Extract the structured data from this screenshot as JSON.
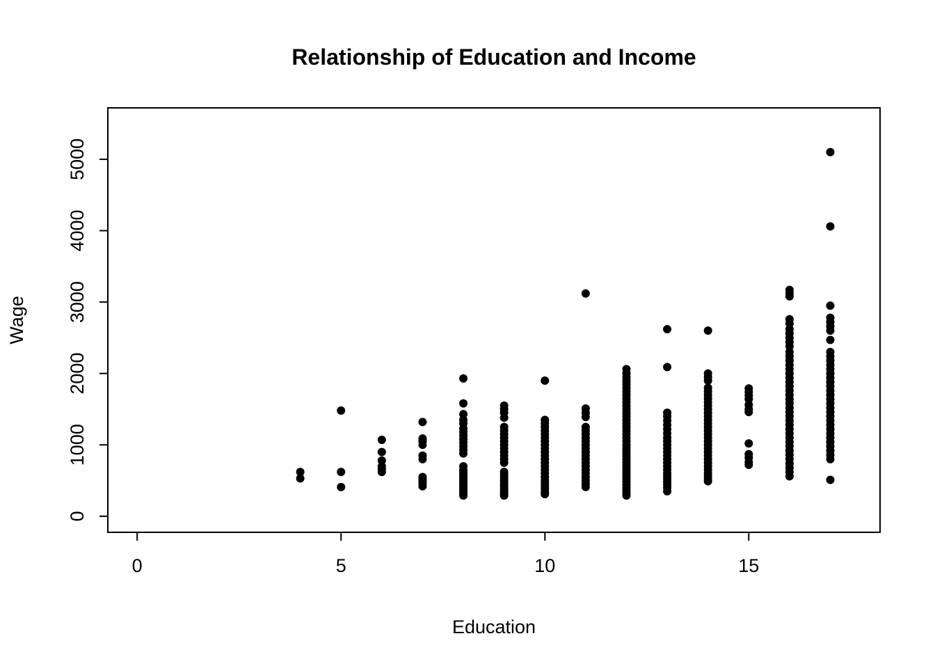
{
  "page": {
    "background": "#ffffff"
  },
  "chart_data": {
    "type": "scatter",
    "title": "Relationship of Education and Income",
    "xlabel": "Education",
    "ylabel": "Wage",
    "xlim": [
      -0.72,
      18.22
    ],
    "ylim": [
      -225,
      5720
    ],
    "x_ticks": [
      0,
      5,
      10,
      15
    ],
    "y_ticks": [
      0,
      1000,
      2000,
      3000,
      4000,
      5000
    ],
    "grid": false,
    "legend": "none",
    "point_color": "#000000",
    "point_radius": 6,
    "series": [
      {
        "education": 4,
        "wages": [
          530,
          620
        ]
      },
      {
        "education": 5,
        "wages": [
          410,
          620,
          1480
        ]
      },
      {
        "education": 6,
        "wages": [
          620,
          660,
          700,
          780,
          900,
          1070
        ]
      },
      {
        "education": 7,
        "wages": [
          420,
          460,
          490,
          520,
          550,
          800,
          850,
          1000,
          1050,
          1090,
          1320
        ]
      },
      {
        "education": 8,
        "wages": [
          290,
          320,
          350,
          380,
          410,
          440,
          470,
          500,
          530,
          560,
          590,
          620,
          650,
          700,
          880,
          930,
          980,
          1030,
          1080,
          1130,
          1180,
          1230,
          1300,
          1350,
          1430,
          1580,
          1930
        ]
      },
      {
        "education": 9,
        "wages": [
          290,
          310,
          340,
          370,
          400,
          430,
          460,
          500,
          540,
          580,
          620,
          750,
          800,
          850,
          900,
          950,
          1000,
          1050,
          1100,
          1150,
          1200,
          1250,
          1380,
          1450,
          1500,
          1550
        ]
      },
      {
        "education": 10,
        "wages": [
          310,
          340,
          380,
          420,
          460,
          500,
          550,
          600,
          650,
          700,
          750,
          800,
          850,
          900,
          950,
          1000,
          1050,
          1100,
          1150,
          1200,
          1250,
          1300,
          1350,
          1900
        ]
      },
      {
        "education": 11,
        "wages": [
          410,
          450,
          500,
          550,
          600,
          650,
          700,
          750,
          800,
          850,
          900,
          950,
          1000,
          1050,
          1100,
          1150,
          1200,
          1250,
          1390,
          1450,
          1510,
          3120
        ]
      },
      {
        "education": 12,
        "wages": [
          290,
          320,
          360,
          400,
          440,
          480,
          520,
          560,
          600,
          640,
          680,
          720,
          760,
          800,
          840,
          880,
          920,
          960,
          1000,
          1050,
          1100,
          1150,
          1200,
          1250,
          1300,
          1350,
          1400,
          1450,
          1500,
          1550,
          1600,
          1650,
          1700,
          1750,
          1800,
          1850,
          1900,
          1950,
          2000,
          2060
        ]
      },
      {
        "education": 13,
        "wages": [
          350,
          400,
          440,
          480,
          520,
          560,
          600,
          650,
          700,
          750,
          800,
          850,
          900,
          950,
          1000,
          1050,
          1100,
          1160,
          1220,
          1280,
          1340,
          1400,
          1450,
          2090,
          2620
        ]
      },
      {
        "education": 14,
        "wages": [
          490,
          520,
          560,
          600,
          650,
          700,
          750,
          800,
          850,
          900,
          950,
          1000,
          1050,
          1100,
          1150,
          1200,
          1250,
          1300,
          1350,
          1400,
          1450,
          1500,
          1550,
          1600,
          1650,
          1700,
          1750,
          1800,
          1900,
          1950,
          2000,
          2600
        ]
      },
      {
        "education": 15,
        "wages": [
          720,
          760,
          820,
          870,
          1020,
          1460,
          1500,
          1560,
          1640,
          1690,
          1740,
          1790
        ]
      },
      {
        "education": 16,
        "wages": [
          560,
          620,
          680,
          740,
          800,
          860,
          920,
          980,
          1040,
          1100,
          1160,
          1220,
          1280,
          1340,
          1400,
          1460,
          1520,
          1580,
          1640,
          1700,
          1760,
          1820,
          1880,
          1940,
          2000,
          2060,
          2120,
          2180,
          2240,
          2300,
          2380,
          2440,
          2500,
          2560,
          2620,
          2700,
          2760,
          3080,
          3120,
          3170
        ]
      },
      {
        "education": 17,
        "wages": [
          510,
          800,
          860,
          920,
          980,
          1040,
          1100,
          1160,
          1220,
          1280,
          1340,
          1400,
          1460,
          1520,
          1580,
          1640,
          1700,
          1760,
          1820,
          1880,
          1940,
          2000,
          2060,
          2120,
          2180,
          2240,
          2300,
          2470,
          2600,
          2660,
          2720,
          2780,
          2950,
          4060,
          5100
        ]
      }
    ]
  }
}
